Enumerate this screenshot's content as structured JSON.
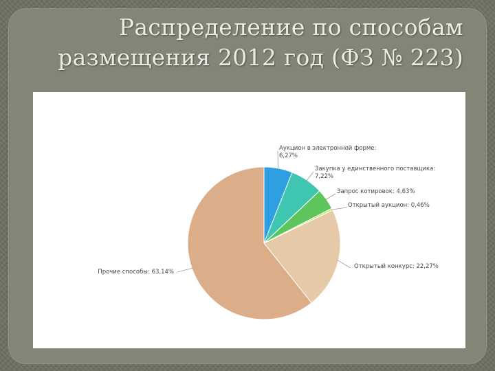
{
  "slide": {
    "title_lines": [
      "Распределение по способам",
      "размещения 2012 год (ФЗ № 223)"
    ]
  },
  "chart_data": {
    "type": "pie",
    "title": "",
    "legend": "none",
    "slices": [
      {
        "label": "Аукцион в электронной форме",
        "value_text": "6,27%",
        "value": 6.27,
        "color": "#2e9fe0"
      },
      {
        "label": "Закупка у единственного поставщика",
        "value_text": "7,22%",
        "value": 7.22,
        "color": "#3fc6b0"
      },
      {
        "label": "Запрос котировок",
        "value_text": "4,63%",
        "value": 4.63,
        "color": "#5cc55c"
      },
      {
        "label": "Открытый аукцион",
        "value_text": "0,46%",
        "value": 0.46,
        "color": "#c9e66c"
      },
      {
        "label": "Открытый конкурс",
        "value_text": "22,27%",
        "value": 22.27,
        "color": "#e6c9a6"
      },
      {
        "label": "Прочие способы",
        "value_text": "63,14%",
        "value": 63.14,
        "color": "#dcad89"
      }
    ]
  }
}
